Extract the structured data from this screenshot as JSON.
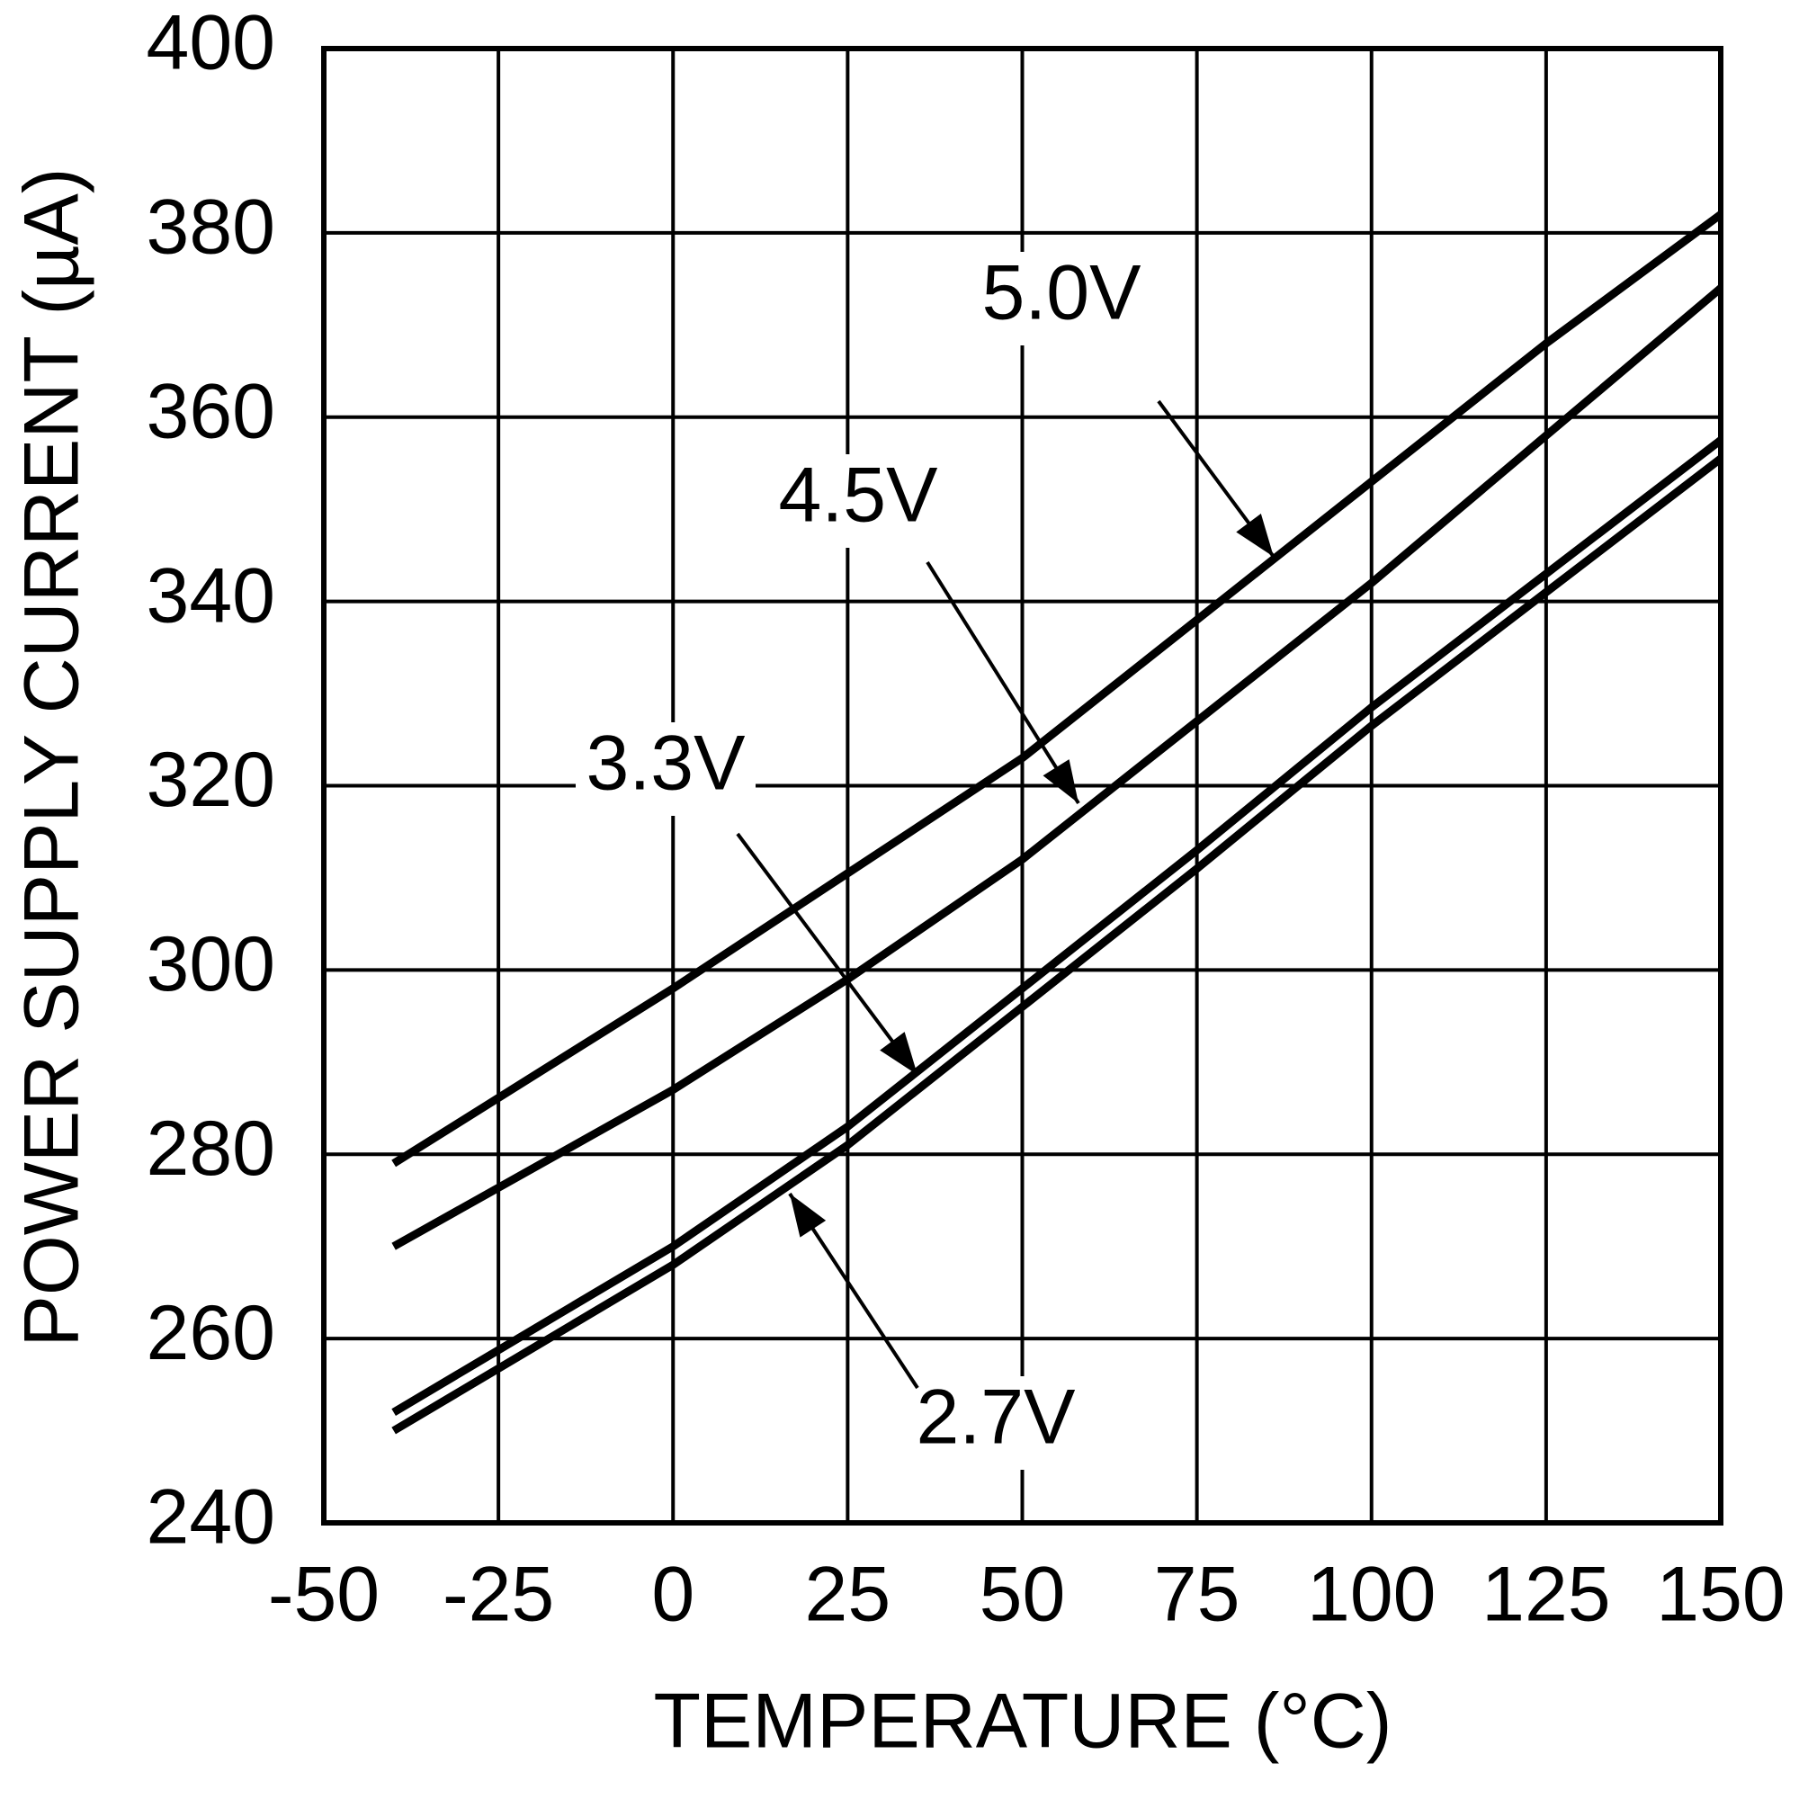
{
  "chart_data": {
    "type": "line",
    "x_label": "TEMPERATURE (°C)",
    "y_label": "POWER SUPPLY CURRENT (µA)",
    "x": [
      -40,
      0,
      25,
      50,
      75,
      100,
      125,
      150
    ],
    "series": [
      {
        "name": "5.0V",
        "color": "#000000",
        "values": [
          279,
          298,
          310.5,
          323,
          338,
          353,
          368,
          382
        ]
      },
      {
        "name": "4.5V",
        "color": "#000000",
        "values": [
          270,
          287,
          299,
          312,
          327,
          342,
          358,
          374
        ]
      },
      {
        "name": "3.3V",
        "color": "#000000",
        "values": [
          252,
          270,
          283,
          298,
          313,
          328.5,
          343,
          357.5
        ]
      },
      {
        "name": "2.7V",
        "color": "#000000",
        "values": [
          250,
          268,
          281,
          296,
          311,
          326.5,
          341,
          355.5
        ]
      }
    ],
    "xlim": [
      -50,
      150
    ],
    "xticks": [
      -50,
      -25,
      0,
      25,
      50,
      75,
      100,
      125,
      150
    ],
    "ylim": [
      240,
      400
    ],
    "yticks": [
      240,
      260,
      280,
      300,
      320,
      340,
      360,
      380,
      400
    ],
    "grid": true
  }
}
